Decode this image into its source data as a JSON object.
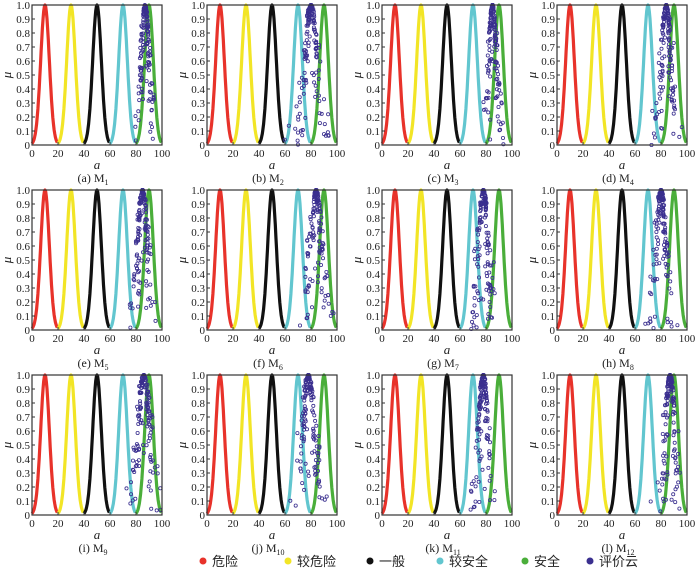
{
  "colors": {
    "danger": "#e8322a",
    "less_danger": "#f2e526",
    "general": "#111111",
    "less_safe": "#62c6cf",
    "safe": "#4aae3a",
    "eval": "#3a2f8f"
  },
  "legend": [
    {
      "label": "危险",
      "color": "#e8322a"
    },
    {
      "label": "较危险",
      "color": "#f2e526"
    },
    {
      "label": "一般",
      "color": "#111111"
    },
    {
      "label": "较安全",
      "color": "#62c6cf"
    },
    {
      "label": "安全",
      "color": "#4aae3a"
    },
    {
      "label": "评价云",
      "color": "#3a2f8f"
    }
  ],
  "chart_data": {
    "type": "scatter",
    "xlabel": "a",
    "ylabel": "μ",
    "xlim": [
      0,
      100
    ],
    "ylim": [
      0,
      1
    ],
    "xticks": [
      "0",
      "20",
      "40",
      "60",
      "80",
      "100"
    ],
    "yticks": [
      "0",
      "0.1",
      "0.2",
      "0.3",
      "0.4",
      "0.5",
      "0.6",
      "0.7",
      "0.8",
      "0.9",
      "1.0"
    ],
    "standard_clouds": [
      {
        "name": "危险",
        "Ex": 10,
        "En": 3.33
      },
      {
        "name": "较危险",
        "Ex": 30,
        "En": 3.33
      },
      {
        "name": "一般",
        "Ex": 50,
        "En": 3.33
      },
      {
        "name": "较安全",
        "Ex": 70,
        "En": 3.33
      },
      {
        "name": "安全",
        "Ex": 90,
        "En": 3.33
      }
    ],
    "panels": [
      {
        "label": "(a) M",
        "sub": "1",
        "eval_Ex": 87,
        "eval_En": 3.0,
        "eval_He": 1.0
      },
      {
        "label": "(b) M",
        "sub": "2",
        "eval_Ex": 80,
        "eval_En": 4.5,
        "eval_He": 1.5
      },
      {
        "label": "(c) M",
        "sub": "3",
        "eval_Ex": 85,
        "eval_En": 3.0,
        "eval_He": 1.0
      },
      {
        "label": "(d) M",
        "sub": "4",
        "eval_Ex": 84,
        "eval_En": 3.5,
        "eval_He": 1.2
      },
      {
        "label": "(e) M",
        "sub": "5",
        "eval_Ex": 85,
        "eval_En": 3.5,
        "eval_He": 1.2
      },
      {
        "label": "(f) M",
        "sub": "6",
        "eval_Ex": 84,
        "eval_En": 4.0,
        "eval_He": 1.5
      },
      {
        "label": "(g) M",
        "sub": "7",
        "eval_Ex": 78,
        "eval_En": 3.5,
        "eval_He": 1.2
      },
      {
        "label": "(h) M",
        "sub": "8",
        "eval_Ex": 80,
        "eval_En": 3.5,
        "eval_He": 1.2
      },
      {
        "label": "(i) M",
        "sub": "9",
        "eval_Ex": 86,
        "eval_En": 4.5,
        "eval_He": 1.5
      },
      {
        "label": "(j) M",
        "sub": "10",
        "eval_Ex": 78,
        "eval_En": 4.0,
        "eval_He": 1.5
      },
      {
        "label": "(k) M",
        "sub": "11",
        "eval_Ex": 78,
        "eval_En": 3.5,
        "eval_He": 1.2
      },
      {
        "label": "(l) M",
        "sub": "12",
        "eval_Ex": 87,
        "eval_En": 3.5,
        "eval_He": 1.2
      }
    ]
  }
}
